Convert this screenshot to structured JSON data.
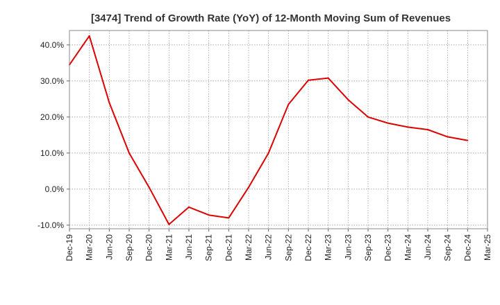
{
  "chart_data": {
    "type": "line",
    "title": "[3474]  Trend of Growth Rate (YoY) of 12-Month Moving Sum of Revenues",
    "xlabel": "",
    "ylabel": "",
    "ylim": [
      -11,
      44
    ],
    "y_ticks": [
      -10,
      0,
      10,
      20,
      30,
      40
    ],
    "y_tick_labels": [
      "-10.0%",
      "0.0%",
      "10.0%",
      "20.0%",
      "30.0%",
      "40.0%"
    ],
    "x_tick_labels": [
      "Dec-19",
      "Mar-20",
      "Jun-20",
      "Sep-20",
      "Dec-20",
      "Mar-21",
      "Jun-21",
      "Sep-21",
      "Dec-21",
      "Mar-22",
      "Jun-22",
      "Sep-22",
      "Dec-22",
      "Mar-23",
      "Jun-23",
      "Sep-23",
      "Dec-23",
      "Mar-24",
      "Jun-24",
      "Sep-24",
      "Dec-24",
      "Mar-25"
    ],
    "grid": true,
    "color": "#dd0000",
    "series": [
      {
        "x": [
          "Dec-19",
          "Mar-20",
          "Jun-20",
          "Sep-20",
          "Dec-20",
          "Mar-21",
          "Jun-21",
          "Sep-21",
          "Dec-21",
          "Mar-22",
          "Jun-22",
          "Sep-22",
          "Dec-22",
          "Mar-23",
          "Jun-23",
          "Sep-23",
          "Dec-23",
          "Mar-24",
          "Jun-24",
          "Sep-24",
          "Dec-24"
        ],
        "values": [
          34.5,
          42.5,
          24.0,
          10.0,
          0.5,
          -9.8,
          -5.0,
          -7.2,
          -8.0,
          0.5,
          10.0,
          23.5,
          30.2,
          30.8,
          24.8,
          20.0,
          18.3,
          17.2,
          16.5,
          14.5,
          13.5
        ]
      }
    ]
  }
}
